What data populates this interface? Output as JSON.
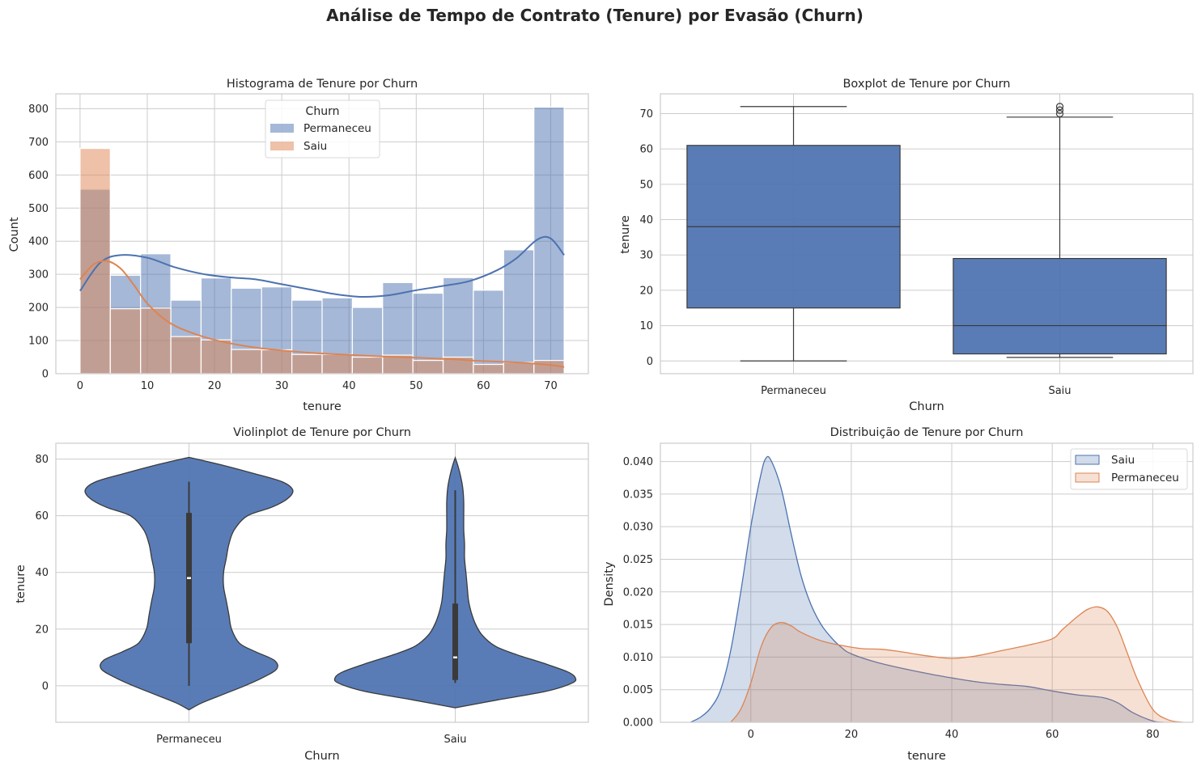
{
  "suptitle": "Análise de Tempo de Contrato (Tenure) por Evasão (Churn)",
  "colors": {
    "permaneceu_blue": "#4c72b0",
    "saiu_orange": "#dd8452",
    "grid": "#cccccc",
    "box_line": "#3a3a3a"
  },
  "chart_data": [
    {
      "id": "hist",
      "type": "bar",
      "title": "Histograma de Tenure por Churn",
      "xlabel": "tenure",
      "ylabel": "Count",
      "xlim": [
        -3.6,
        75.6
      ],
      "ylim": [
        0,
        845
      ],
      "xticks": [
        0,
        10,
        20,
        30,
        40,
        50,
        60,
        70
      ],
      "yticks": [
        0,
        100,
        200,
        300,
        400,
        500,
        600,
        700,
        800
      ],
      "grid": true,
      "legend": {
        "title": "Churn",
        "placement": "top-center",
        "entries": [
          "Permaneceu",
          "Saiu"
        ]
      },
      "bin_edges": [
        0,
        4.5,
        9,
        13.5,
        18,
        22.5,
        27,
        31.5,
        36,
        40.5,
        45,
        49.5,
        54,
        58.5,
        63,
        67.5,
        72
      ],
      "series": [
        {
          "name": "Permaneceu",
          "color": "#4c72b0",
          "values": [
            557,
            297,
            362,
            222,
            289,
            258,
            262,
            222,
            229,
            200,
            275,
            243,
            290,
            252,
            374,
            805
          ]
        },
        {
          "name": "Saiu",
          "color": "#dd8452",
          "values": [
            680,
            196,
            198,
            112,
            102,
            73,
            72,
            58,
            58,
            50,
            56,
            40,
            50,
            28,
            34,
            40
          ]
        }
      ],
      "kde": [
        {
          "name": "Permaneceu",
          "x": [
            0,
            3,
            6,
            10,
            14,
            18,
            22,
            26,
            30,
            34,
            38,
            42,
            46,
            50,
            54,
            58,
            62,
            65,
            68,
            70,
            72
          ],
          "y": [
            250,
            335,
            358,
            350,
            322,
            302,
            291,
            285,
            270,
            255,
            240,
            232,
            237,
            252,
            265,
            280,
            312,
            350,
            405,
            408,
            358
          ]
        },
        {
          "name": "Saiu",
          "x": [
            0,
            2,
            4,
            6,
            8,
            10,
            13,
            16,
            20,
            25,
            30,
            35,
            40,
            45,
            50,
            55,
            60,
            65,
            70,
            72
          ],
          "y": [
            285,
            330,
            340,
            318,
            268,
            212,
            158,
            128,
            102,
            82,
            70,
            62,
            57,
            52,
            48,
            44,
            38,
            34,
            26,
            20
          ]
        }
      ]
    },
    {
      "id": "box",
      "type": "box",
      "title": "Boxplot de Tenure por Churn",
      "xlabel": "Churn",
      "ylabel": "tenure",
      "ylim": [
        -3.6,
        75.6
      ],
      "yticks": [
        0,
        10,
        20,
        30,
        40,
        50,
        60,
        70
      ],
      "grid": true,
      "categories": [
        "Permaneceu",
        "Saiu"
      ],
      "boxes": [
        {
          "name": "Permaneceu",
          "min": 0,
          "q1": 15,
          "median": 38,
          "q3": 61,
          "max": 72,
          "outliers": []
        },
        {
          "name": "Saiu",
          "min": 1,
          "q1": 2,
          "median": 10,
          "q3": 29,
          "max": 69,
          "outliers": [
            70,
            71,
            72
          ]
        }
      ]
    },
    {
      "id": "violin",
      "type": "violin",
      "title": "Violinplot de Tenure por Churn",
      "xlabel": "Churn",
      "ylabel": "tenure",
      "ylim": [
        -12.9,
        85.6
      ],
      "yticks": [
        0,
        20,
        40,
        60,
        80
      ],
      "grid": true,
      "categories": [
        "Permaneceu",
        "Saiu"
      ],
      "violins": [
        {
          "name": "Permaneceu",
          "q1": 15,
          "median": 38,
          "q3": 61,
          "whisker_low": 0,
          "whisker_high": 72,
          "profile_y": [
            -8.5,
            -6,
            -3,
            0,
            3,
            6,
            9,
            12,
            15,
            20,
            25,
            30,
            35,
            40,
            45,
            50,
            55,
            60,
            63,
            66,
            69,
            72,
            75,
            78,
            80.6
          ],
          "profile_w": [
            0,
            0.05,
            0.13,
            0.21,
            0.28,
            0.33,
            0.32,
            0.25,
            0.19,
            0.16,
            0.15,
            0.14,
            0.13,
            0.13,
            0.14,
            0.15,
            0.17,
            0.22,
            0.31,
            0.37,
            0.39,
            0.35,
            0.24,
            0.12,
            0
          ]
        },
        {
          "name": "Saiu",
          "q1": 2,
          "median": 10,
          "q3": 29,
          "whisker_low": 1,
          "whisker_high": 69,
          "profile_y": [
            -7.8,
            -5,
            -2,
            1,
            3,
            5,
            8,
            11,
            14,
            18,
            22,
            26,
            30,
            35,
            40,
            45,
            50,
            55,
            60,
            65,
            70,
            74,
            77,
            80.5
          ],
          "profile_w": [
            0,
            0.16,
            0.34,
            0.44,
            0.45,
            0.42,
            0.33,
            0.23,
            0.15,
            0.1,
            0.075,
            0.06,
            0.05,
            0.045,
            0.04,
            0.035,
            0.035,
            0.032,
            0.032,
            0.032,
            0.028,
            0.02,
            0.012,
            0
          ]
        }
      ]
    },
    {
      "id": "kde",
      "type": "area",
      "title": "Distribuição de Tenure por Churn",
      "xlabel": "tenure",
      "ylabel": "Density",
      "xlim": [
        -18,
        88
      ],
      "ylim": [
        0,
        0.0428
      ],
      "xticks": [
        0,
        20,
        40,
        60,
        80
      ],
      "yticks": [
        0.0,
        0.005,
        0.01,
        0.015,
        0.02,
        0.025,
        0.03,
        0.035,
        0.04
      ],
      "ytick_labels": [
        "0.000",
        "0.005",
        "0.010",
        "0.015",
        "0.020",
        "0.025",
        "0.030",
        "0.035",
        "0.040"
      ],
      "grid": true,
      "legend": {
        "placement": "top-right",
        "entries": [
          "Saiu",
          "Permaneceu"
        ]
      },
      "series": [
        {
          "name": "Saiu",
          "color": "#4c72b0",
          "x": [
            -12,
            -10,
            -8,
            -6,
            -4,
            -2,
            0,
            2,
            3,
            4,
            6,
            8,
            10,
            12,
            14,
            16,
            18,
            20,
            25,
            30,
            35,
            40,
            45,
            50,
            55,
            60,
            65,
            70,
            73,
            76,
            80,
            82
          ],
          "y": [
            0,
            0.0008,
            0.0022,
            0.005,
            0.011,
            0.02,
            0.03,
            0.038,
            0.0405,
            0.0402,
            0.036,
            0.029,
            0.0225,
            0.018,
            0.015,
            0.013,
            0.0115,
            0.0105,
            0.0092,
            0.0083,
            0.0075,
            0.0068,
            0.0062,
            0.0058,
            0.0055,
            0.0048,
            0.0042,
            0.0038,
            0.003,
            0.0015,
            0.0002,
            0
          ]
        },
        {
          "name": "Permaneceu",
          "color": "#dd8452",
          "x": [
            -4,
            -2,
            0,
            2,
            4,
            6,
            8,
            10,
            14,
            18,
            22,
            26,
            30,
            35,
            40,
            45,
            50,
            55,
            60,
            62,
            65,
            67,
            69,
            71,
            73,
            75,
            77,
            80,
            83,
            86
          ],
          "y": [
            0,
            0.002,
            0.006,
            0.0115,
            0.0145,
            0.0153,
            0.0148,
            0.0138,
            0.0125,
            0.0118,
            0.0113,
            0.0112,
            0.0108,
            0.0102,
            0.0098,
            0.0102,
            0.011,
            0.0118,
            0.0128,
            0.0142,
            0.0162,
            0.0173,
            0.0177,
            0.017,
            0.0145,
            0.0105,
            0.0065,
            0.002,
            0.0004,
            0
          ]
        }
      ]
    }
  ]
}
